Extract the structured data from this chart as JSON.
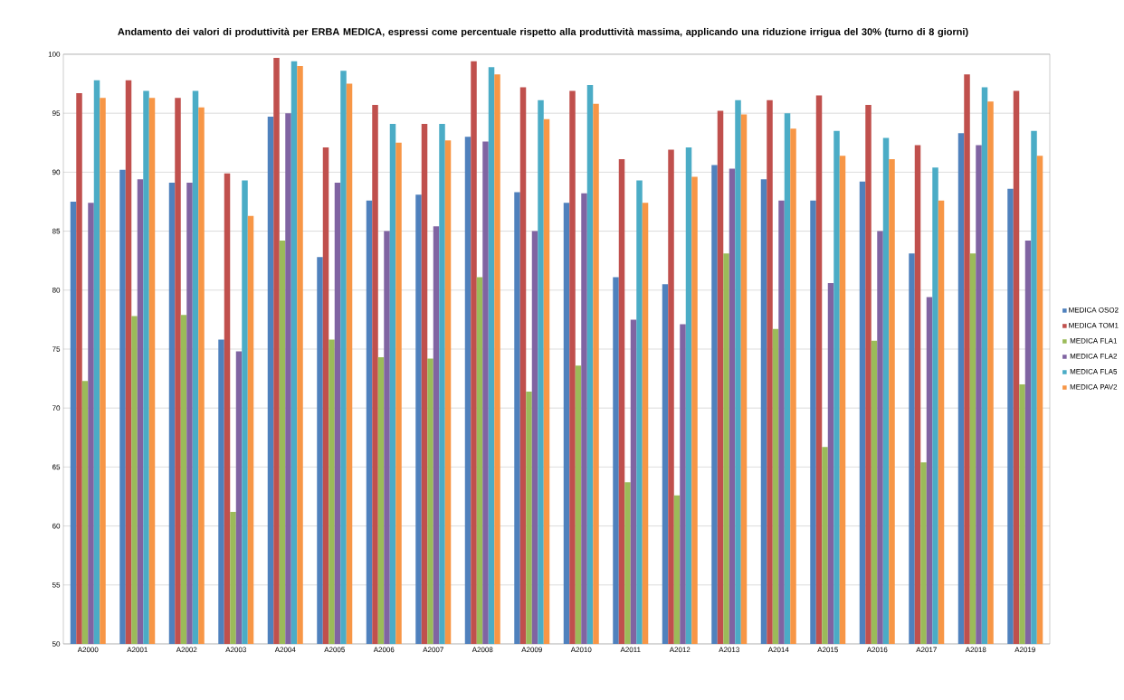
{
  "chart_data": {
    "type": "bar",
    "title": "Andamento dei valori di produttività per ERBA MEDICA, espressi come percentuale rispetto alla produttività massima, applicando una riduzione irrigua del 30% (turno di 8 giorni)",
    "categories": [
      "A2000",
      "A2001",
      "A2002",
      "A2003",
      "A2004",
      "A2005",
      "A2006",
      "A2007",
      "A2008",
      "A2009",
      "A2010",
      "A2011",
      "A2012",
      "A2013",
      "A2014",
      "A2015",
      "A2016",
      "A2017",
      "A2018",
      "A2019"
    ],
    "series": [
      {
        "name": "MEDICA OSO2",
        "color": "#4f81bd",
        "values": [
          87.5,
          90.2,
          89.1,
          75.8,
          94.7,
          82.8,
          87.6,
          88.1,
          93.0,
          88.3,
          87.4,
          81.1,
          80.5,
          90.6,
          89.4,
          87.6,
          89.2,
          83.1,
          93.3,
          88.6
        ]
      },
      {
        "name": "MEDICA TOM1",
        "color": "#c0504d",
        "values": [
          96.7,
          97.8,
          96.3,
          89.9,
          99.7,
          92.1,
          95.7,
          94.1,
          99.4,
          97.2,
          96.9,
          91.1,
          91.9,
          95.2,
          96.1,
          96.5,
          95.7,
          92.3,
          98.3,
          96.9
        ]
      },
      {
        "name": "MEDICA FLA1",
        "color": "#9bbb59",
        "values": [
          72.3,
          77.8,
          77.9,
          61.2,
          84.2,
          75.8,
          74.3,
          74.2,
          81.1,
          71.4,
          73.6,
          63.7,
          62.6,
          83.1,
          76.7,
          66.7,
          75.7,
          65.4,
          83.1,
          72.0
        ]
      },
      {
        "name": "MEDICA FLA2",
        "color": "#8064a2",
        "values": [
          87.4,
          89.4,
          89.1,
          74.8,
          95.0,
          89.1,
          85.0,
          85.4,
          92.6,
          85.0,
          88.2,
          77.5,
          77.1,
          90.3,
          87.6,
          80.6,
          85.0,
          79.4,
          92.3,
          84.2
        ]
      },
      {
        "name": "MEDICA FLA5",
        "color": "#4bacc6",
        "values": [
          97.8,
          96.9,
          96.9,
          89.3,
          99.4,
          98.6,
          94.1,
          94.1,
          98.9,
          96.1,
          97.4,
          89.3,
          92.1,
          96.1,
          95.0,
          93.5,
          92.9,
          90.4,
          97.2,
          93.5
        ]
      },
      {
        "name": "MEDICA PAV2",
        "color": "#f79646",
        "values": [
          96.3,
          96.3,
          95.5,
          86.3,
          99.0,
          97.5,
          92.5,
          92.7,
          98.3,
          94.5,
          95.8,
          87.4,
          89.6,
          94.9,
          93.7,
          91.4,
          91.1,
          87.6,
          96.0,
          91.4
        ]
      }
    ],
    "ylim": [
      50,
      100
    ],
    "yticks": [
      50,
      55,
      60,
      65,
      70,
      75,
      80,
      85,
      90,
      95,
      100
    ],
    "grid": "y",
    "legend": "right"
  }
}
